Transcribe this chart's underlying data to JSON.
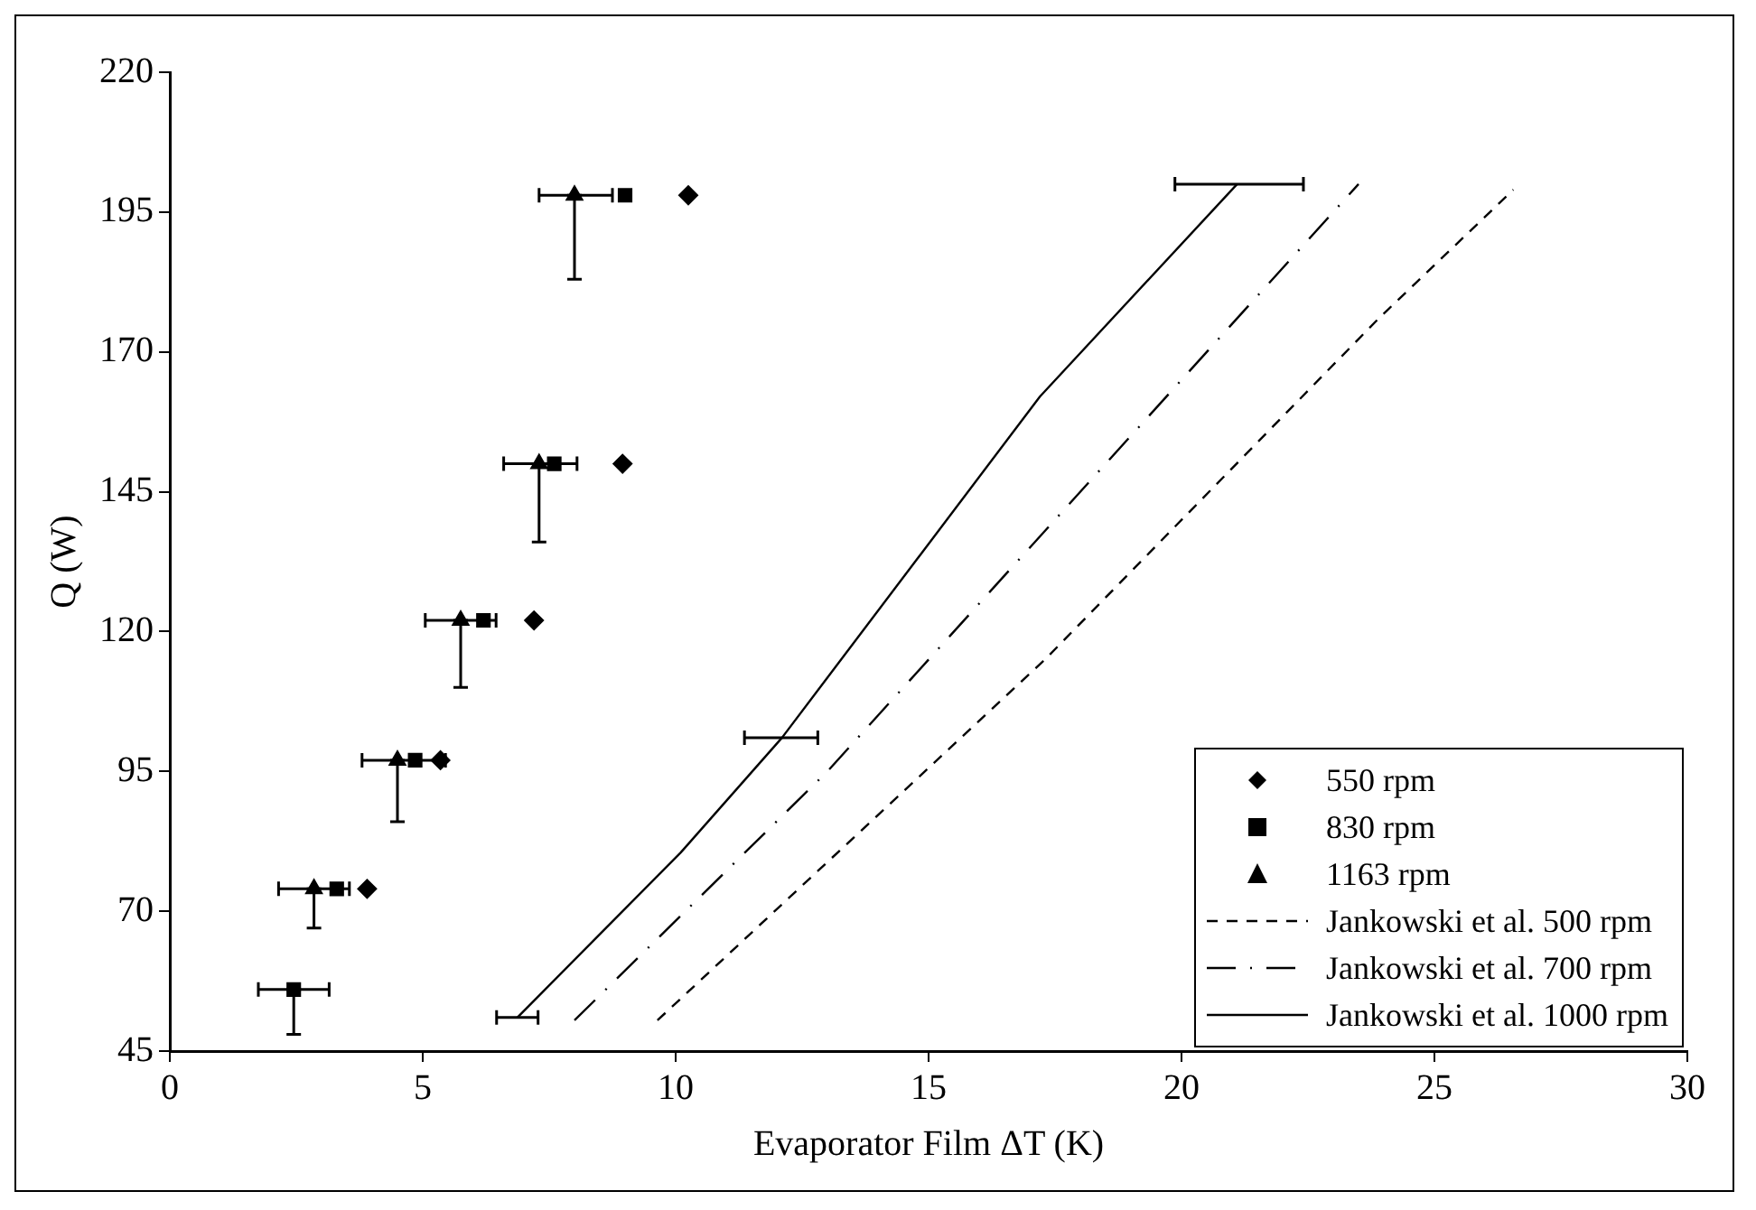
{
  "chart_data": {
    "type": "scatter",
    "xlabel": "Evaporator Film ΔT (K)",
    "ylabel": "Q (W)",
    "xlim": [
      0,
      30
    ],
    "xticks": [
      0,
      5,
      10,
      15,
      20,
      25,
      30
    ],
    "ylim": [
      45,
      220
    ],
    "yticks": [
      45,
      70,
      95,
      120,
      145,
      170,
      195,
      220
    ],
    "grid": false,
    "legend": "bottom right",
    "series": [
      {
        "name": "550 rpm",
        "marker": "diamond",
        "color": "#000000",
        "x": [
          3.9,
          5.35,
          7.2,
          8.95,
          10.25
        ],
        "values": [
          74,
          97,
          122,
          150,
          198
        ]
      },
      {
        "name": "830 rpm",
        "marker": "square",
        "color": "#000000",
        "x": [
          2.45,
          3.3,
          4.85,
          6.2,
          7.6,
          9.0
        ],
        "values": [
          56,
          74,
          97,
          122,
          150,
          198
        ],
        "errors": [
          [
            48,
            56
          ],
          null,
          null,
          null,
          null,
          null
        ],
        "xerrors": [
          [
            1.75,
            3.15
          ],
          null,
          null,
          null,
          null,
          null
        ]
      },
      {
        "name": "1163 rpm",
        "marker": "triangle",
        "color": "#000000",
        "x": [
          null,
          2.85,
          4.5,
          5.75,
          7.3,
          8.0
        ],
        "values": [
          null,
          74,
          97,
          122,
          150,
          198
        ],
        "errors": [
          null,
          [
            67,
            74
          ],
          [
            86,
            97
          ],
          [
            110,
            122
          ],
          [
            136,
            150
          ],
          [
            183,
            198
          ]
        ],
        "xerrors": [
          null,
          [
            2.15,
            3.55
          ],
          [
            3.8,
            5.45
          ],
          [
            5.05,
            6.45
          ],
          [
            6.6,
            8.05
          ],
          [
            7.3,
            8.75
          ]
        ]
      },
      {
        "name": "Jankowski et al. 500 rpm",
        "type": "line",
        "line_style": "dashed",
        "marker": "none",
        "color": "#000000",
        "x": [
          9.64,
          17.3,
          23.9,
          26.56
        ],
        "values": [
          50.5,
          115,
          176,
          199
        ]
      },
      {
        "name": "Jankowski et al. 700 rpm",
        "type": "line",
        "line_style": "dashdot",
        "marker": "none",
        "color": "#000000",
        "x": [
          8.0,
          13.0,
          16.7,
          23.5
        ],
        "values": [
          50.5,
          95,
          132,
          200
        ]
      },
      {
        "name": "Jankowski et al. 1000 rpm",
        "type": "line",
        "line_style": "solid",
        "marker": "none",
        "color": "#000000",
        "x": [
          6.87,
          10.1,
          12.1,
          17.2,
          21.1
        ],
        "values": [
          51,
          80.5,
          101,
          162,
          200
        ],
        "xerrors": [
          [
            6.46,
            7.28
          ],
          null,
          [
            11.36,
            12.81
          ],
          null,
          [
            19.87,
            22.41
          ]
        ]
      }
    ]
  }
}
